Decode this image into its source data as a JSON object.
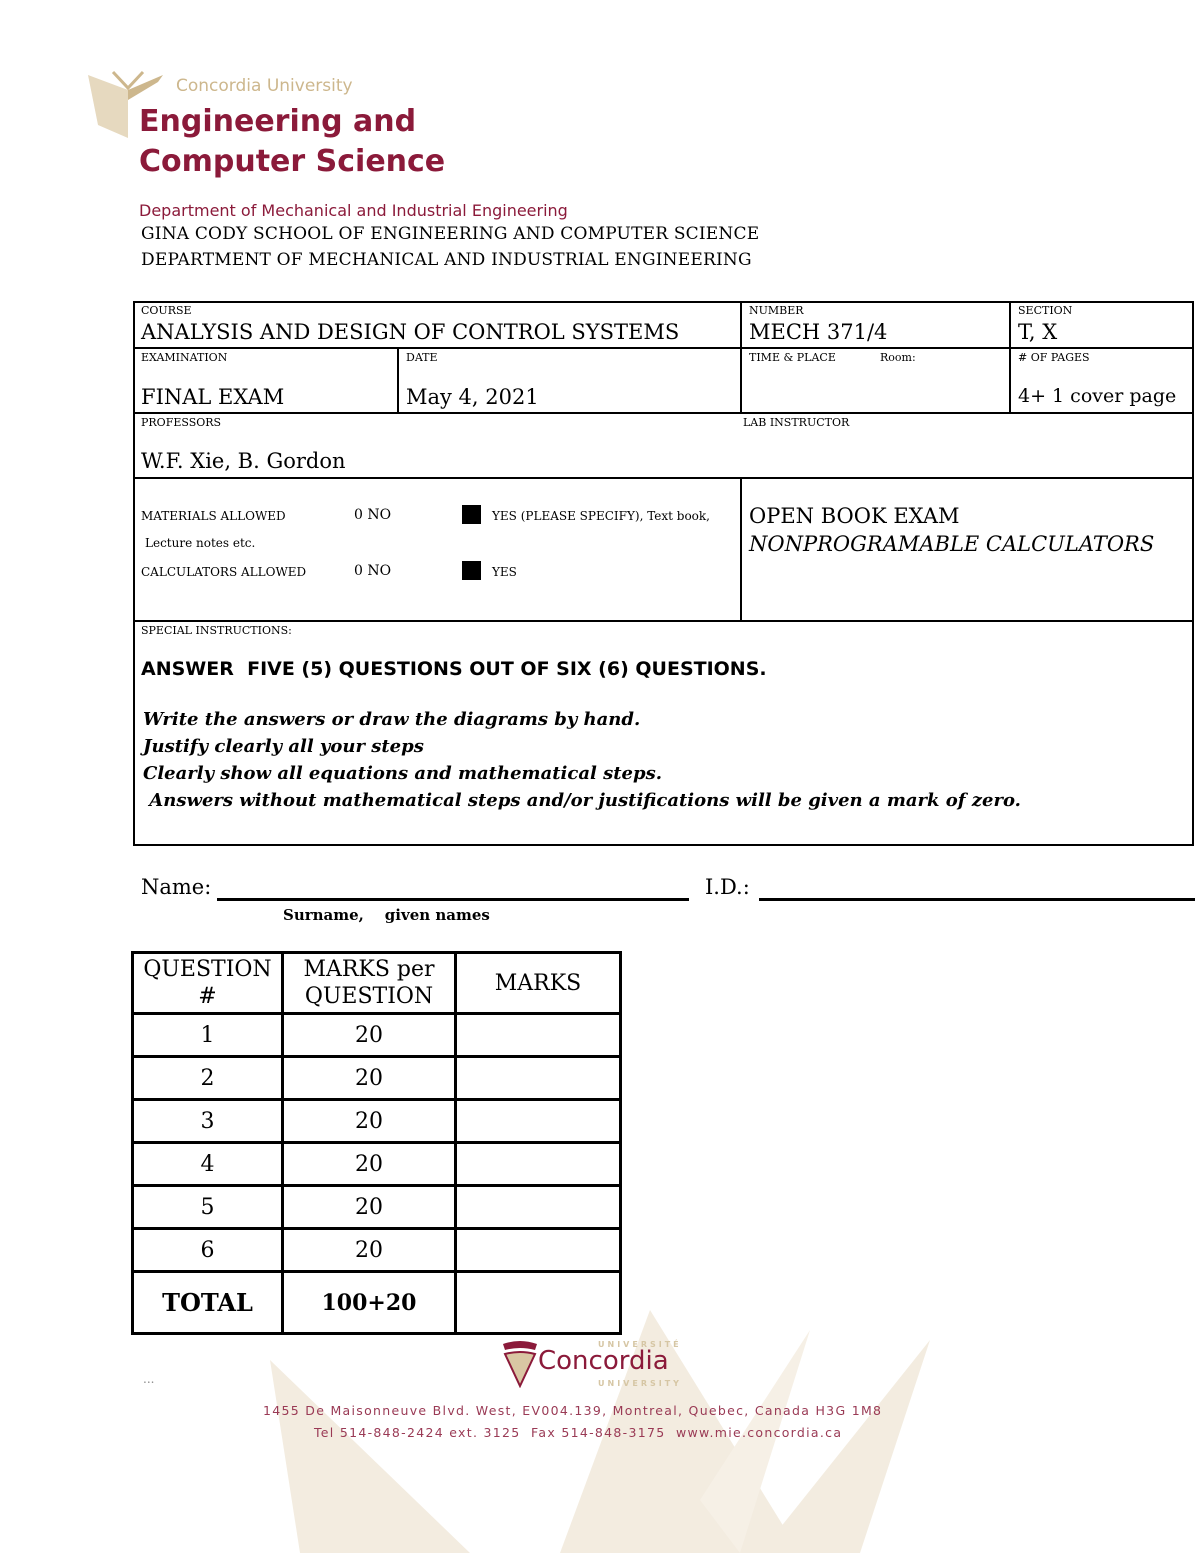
{
  "logo": {
    "university": "Concordia University",
    "faculty_line1": "Engineering and",
    "faculty_line2": "Computer Science",
    "department": "Department of Mechanical and Industrial Engineering"
  },
  "header": {
    "school": "GINA CODY SCHOOL OF ENGINEERING AND COMPUTER SCIENCE",
    "department": "DEPARTMENT OF MECHANICAL AND INDUSTRIAL ENGINEERING"
  },
  "form": {
    "course_label": "COURSE",
    "course": "ANALYSIS AND DESIGN OF CONTROL SYSTEMS",
    "number_label": "NUMBER",
    "number": "MECH 371/4",
    "section_label": "SECTION",
    "section": "T, X",
    "exam_label": "EXAMINATION",
    "exam": "FINAL EXAM",
    "date_label": "DATE",
    "date": "May 4, 2021",
    "time_place_label": "TIME & PLACE",
    "room_label": "Room:",
    "pages_label": "# OF PAGES",
    "pages": "4+ 1 cover page",
    "professors_label": "PROFESSORS",
    "professors": "W.F. Xie, B. Gordon",
    "lab_label": "LAB INSTRUCTOR",
    "materials_label": "MATERIALS ALLOWED",
    "materials_no": "0 NO",
    "materials_yes": "YES (PLEASE SPECIFY), Text book,",
    "materials_note": "Lecture notes etc.",
    "calc_label": "CALCULATORS ALLOWED",
    "calc_no": "0 NO",
    "calc_yes": "YES",
    "open_book": "OPEN BOOK EXAM",
    "calculators": "NONPROGRAMABLE CALCULATORS",
    "special_label": "SPECIAL INSTRUCTIONS:",
    "special_main": "ANSWER  FIVE (5) QUESTIONS OUT OF SIX (6) QUESTIONS.",
    "instructions": [
      "Write the answers or draw the diagrams by hand.",
      "Justify clearly all your steps",
      "Clearly show all equations and mathematical steps.",
      " Answers without mathematical steps and/or justifications will be given a mark of zero."
    ]
  },
  "identity": {
    "name_label": "Name:",
    "id_label": "I.D.:",
    "name_hint": "Surname,    given names"
  },
  "marks_table": {
    "headers": [
      "QUESTION #",
      "MARKS per QUESTION",
      "MARKS"
    ],
    "rows": [
      [
        "1",
        "20",
        ""
      ],
      [
        "2",
        "20",
        ""
      ],
      [
        "3",
        "20",
        ""
      ],
      [
        "4",
        "20",
        ""
      ],
      [
        "5",
        "20",
        ""
      ],
      [
        "6",
        "20",
        ""
      ]
    ],
    "total": [
      "TOTAL",
      "100+20",
      ""
    ]
  },
  "footer": {
    "ellipsis": "...",
    "logo_top": "UNIVERSITÉ",
    "logo": "Concordia",
    "logo_bottom": "UNIVERSITY",
    "address": "1455 De Maisonneuve Blvd. West, EV004.139, Montreal, Quebec, Canada H3G 1M8",
    "contact": "Tel 514-848-2424 ext. 3125  Fax 514-848-3175  www.mie.concordia.ca"
  },
  "colors": {
    "brand": "#8b1a3a",
    "gold": "#cdb78d"
  }
}
